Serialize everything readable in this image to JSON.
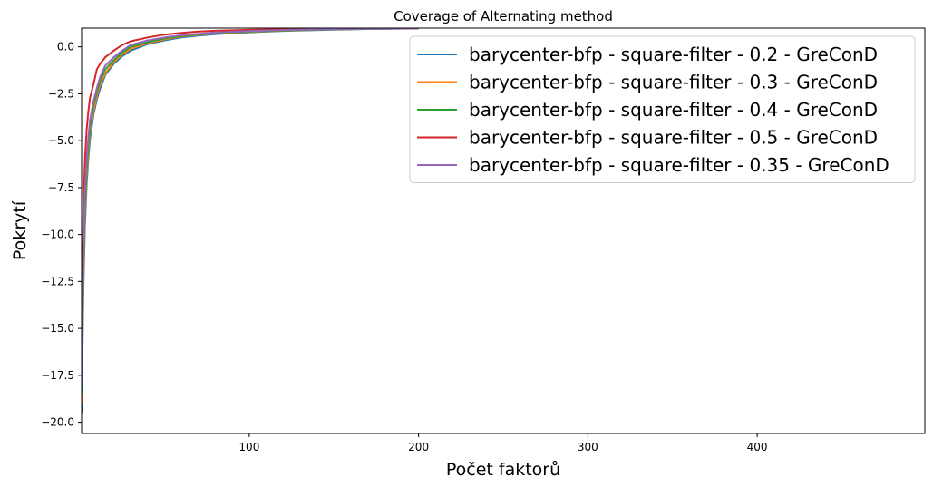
{
  "chart_data": {
    "type": "line",
    "title": "Coverage of Alternating method",
    "xlabel": "Počet faktorů",
    "ylabel": "Pokrytí",
    "xlim": [
      1,
      499
    ],
    "ylim": [
      -20.6,
      1.0
    ],
    "xticks": [
      100,
      200,
      300,
      400
    ],
    "yticks": [
      0.0,
      -2.5,
      -5.0,
      -7.5,
      -10.0,
      -12.5,
      -15.0,
      -17.5,
      -20.0
    ],
    "ytick_labels": [
      "0.0",
      "−2.5",
      "−5.0",
      "−7.5",
      "−10.0",
      "−12.5",
      "−15.0",
      "−17.5",
      "−20.0"
    ],
    "grid": false,
    "legend_position": "top-right",
    "series": [
      {
        "name": "barycenter-bfp - square-filter - 0.2 - GreConD",
        "color": "#1f77b4",
        "x": [
          1,
          2,
          3,
          4,
          5,
          6,
          8,
          10,
          12,
          15,
          20,
          25,
          30,
          40,
          50,
          60,
          70,
          80,
          100,
          120,
          150,
          170,
          200
        ],
        "y": [
          -19.5,
          -13.0,
          -9.5,
          -7.3,
          -5.9,
          -4.9,
          -3.6,
          -2.8,
          -2.2,
          -1.5,
          -0.9,
          -0.5,
          -0.2,
          0.15,
          0.35,
          0.5,
          0.6,
          0.68,
          0.78,
          0.85,
          0.92,
          0.95,
          0.98
        ]
      },
      {
        "name": "barycenter-bfp - square-filter - 0.3 - GreConD",
        "color": "#ff7f0e",
        "x": [
          1,
          2,
          3,
          4,
          5,
          6,
          8,
          10,
          12,
          15,
          20,
          25,
          30,
          40,
          50,
          60,
          70,
          80,
          100,
          120,
          150,
          170,
          200
        ],
        "y": [
          -19.0,
          -12.5,
          -9.0,
          -7.0,
          -5.6,
          -4.6,
          -3.4,
          -2.6,
          -2.0,
          -1.4,
          -0.8,
          -0.4,
          -0.1,
          0.2,
          0.4,
          0.55,
          0.65,
          0.72,
          0.8,
          0.87,
          0.93,
          0.96,
          0.98
        ]
      },
      {
        "name": "barycenter-bfp - square-filter - 0.4 - GreConD",
        "color": "#2ca02c",
        "x": [
          1,
          2,
          3,
          4,
          5,
          6,
          8,
          10,
          12,
          15,
          20,
          25,
          30,
          40,
          50,
          60,
          70,
          80,
          100,
          120,
          150,
          170,
          200
        ],
        "y": [
          -18.5,
          -12.0,
          -8.6,
          -6.6,
          -5.3,
          -4.3,
          -3.1,
          -2.4,
          -1.8,
          -1.2,
          -0.7,
          -0.3,
          0.0,
          0.25,
          0.45,
          0.58,
          0.67,
          0.74,
          0.82,
          0.88,
          0.94,
          0.96,
          0.98
        ]
      },
      {
        "name": "barycenter-bfp - square-filter - 0.5 - GreConD",
        "color": "#d62728",
        "x": [
          1,
          2,
          3,
          4,
          5,
          6,
          8,
          10,
          12,
          15,
          20,
          25,
          30,
          40,
          50,
          60,
          70,
          80,
          100,
          120,
          150,
          170,
          200
        ],
        "y": [
          -17.0,
          -9.0,
          -6.0,
          -4.4,
          -3.4,
          -2.7,
          -2.0,
          -1.2,
          -0.9,
          -0.55,
          -0.2,
          0.1,
          0.3,
          0.5,
          0.65,
          0.75,
          0.82,
          0.86,
          0.91,
          0.94,
          0.97,
          0.98,
          0.99
        ]
      },
      {
        "name": "barycenter-bfp - square-filter - 0.35 - GreConD",
        "color": "#9467bd",
        "x": [
          1,
          2,
          3,
          4,
          5,
          6,
          8,
          10,
          12,
          15,
          20,
          25,
          30,
          40,
          50,
          60,
          70,
          80,
          100,
          120,
          150,
          170,
          200
        ],
        "y": [
          -18.0,
          -11.0,
          -7.8,
          -6.0,
          -4.8,
          -3.9,
          -2.9,
          -2.2,
          -1.6,
          -1.0,
          -0.55,
          -0.2,
          0.1,
          0.35,
          0.5,
          0.62,
          0.7,
          0.77,
          0.84,
          0.9,
          0.95,
          0.97,
          0.99
        ]
      }
    ]
  }
}
